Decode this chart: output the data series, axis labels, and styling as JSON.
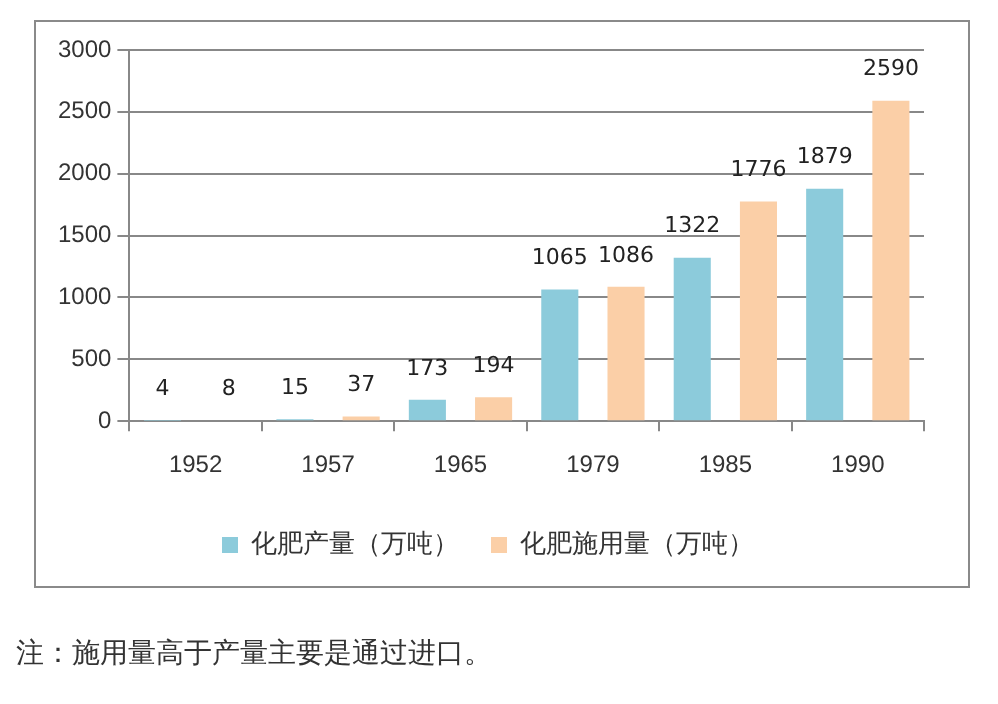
{
  "chart_data": {
    "type": "bar",
    "categories": [
      "1952",
      "1957",
      "1965",
      "1979",
      "1985",
      "1990"
    ],
    "series": [
      {
        "name": "化肥产量（万吨）",
        "color": "#8ccbdb",
        "values": [
          4,
          15,
          173,
          1065,
          1322,
          1879
        ]
      },
      {
        "name": "化肥施用量（万吨）",
        "color": "#fbcfa7",
        "values": [
          8,
          37,
          194,
          1086,
          1776,
          2590
        ]
      }
    ],
    "ylim": [
      0,
      3000
    ],
    "yticks": [
      0,
      500,
      1000,
      1500,
      2000,
      2500,
      3000
    ],
    "grid": "y",
    "legend": "bottom",
    "data_labels": true,
    "annotations": [
      "注：施用量高于产量主要是通过进口。"
    ]
  }
}
